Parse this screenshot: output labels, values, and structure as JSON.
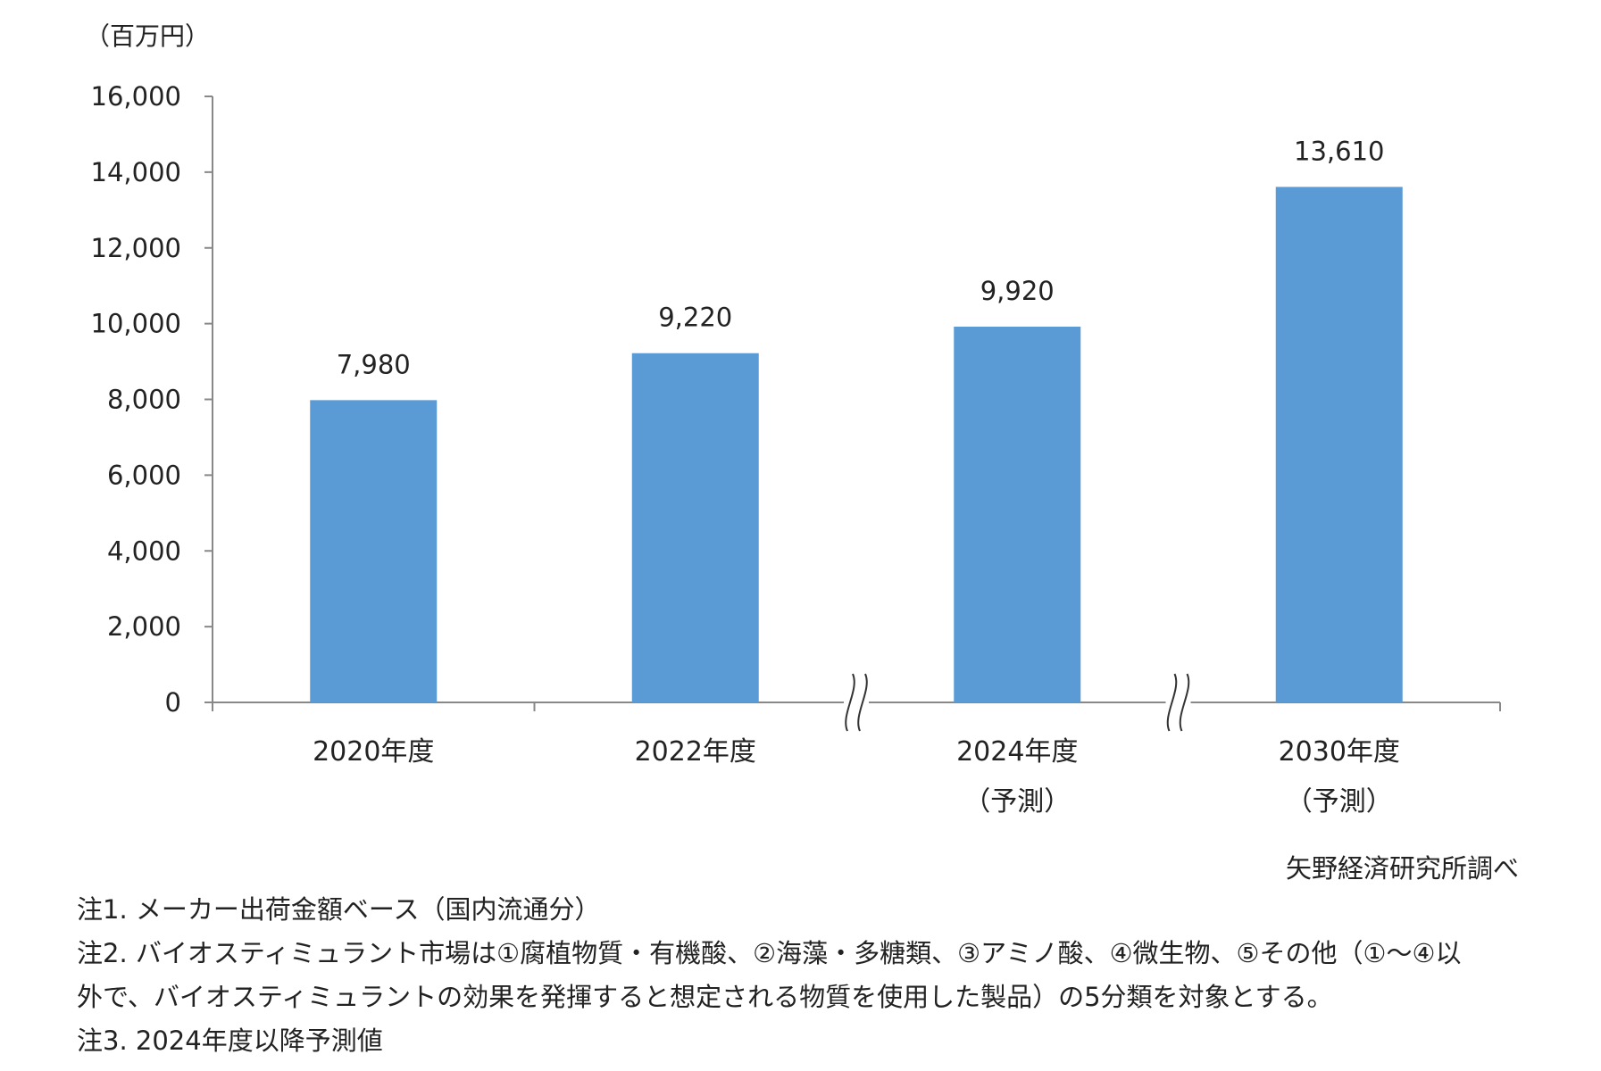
{
  "chart_data": {
    "type": "bar",
    "unit_label": "（百万円）",
    "categories": [
      {
        "lines": [
          "2020年度"
        ]
      },
      {
        "lines": [
          "2022年度"
        ]
      },
      {
        "lines": [
          "2024年度",
          "（予測）"
        ]
      },
      {
        "lines": [
          "2030年度",
          "（予測）"
        ]
      }
    ],
    "values": [
      7980,
      9220,
      9920,
      13610
    ],
    "data_labels": [
      "7,980",
      "9,220",
      "9,920",
      "13,610"
    ],
    "ylim": [
      0,
      16000
    ],
    "yticks": [
      0,
      2000,
      4000,
      6000,
      8000,
      10000,
      12000,
      14000,
      16000
    ],
    "ytick_labels": [
      "0",
      "2,000",
      "4,000",
      "6,000",
      "8,000",
      "10,000",
      "12,000",
      "14,000",
      "16,000"
    ],
    "bar_color": "#5b9bd5",
    "axis_break_after": [
      1,
      2
    ],
    "grid": false,
    "legend": "none"
  },
  "source": "矢野経済研究所調べ",
  "notes": [
    "注1. メーカー出荷金額ベース（国内流通分）",
    "注2. バイオスティミュラント市場は①腐植物質・有機酸、②海藻・多糖類、③アミノ酸、④微生物、⑤その他（①～④以",
    "外で、バイオスティミュラントの効果を発揮すると想定される物質を使用した製品）の5分類を対象とする。",
    "注3. 2024年度以降予測値"
  ]
}
